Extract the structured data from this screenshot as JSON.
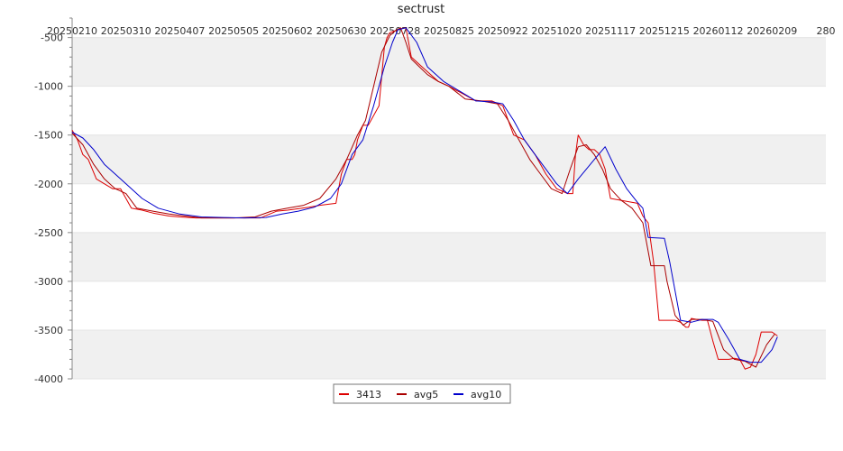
{
  "chart_data": {
    "type": "line",
    "title": "sectrust",
    "xlabel": "",
    "ylabel": "",
    "x_tick_labels": [
      "20250210",
      "20250310",
      "20250407",
      "20250505",
      "20250602",
      "20250630",
      "20250728",
      "20250825",
      "20250922",
      "20251020",
      "20251117",
      "20251215",
      "20260112",
      "20260209",
      "280"
    ],
    "x_range": [
      0,
      14
    ],
    "ylim": [
      -4000,
      -300
    ],
    "y_ticks": [
      -500,
      -1000,
      -1500,
      -2000,
      -2500,
      -3000,
      -3500,
      -4000
    ],
    "y_tick_labels": [
      "-500",
      "-1000",
      "-1500",
      "-2000",
      "-2500",
      "-3000",
      "-3500",
      "-4000"
    ],
    "grid": "horizontal bands",
    "legend_position": "bottom-center",
    "colors": {
      "3413": "#dd0000",
      "avg5": "#aa0000",
      "avg10": "#0000cc",
      "band": "#f0f0f0"
    },
    "series": [
      {
        "name": "3413",
        "x": [
          0,
          0.1,
          0.2,
          0.3,
          0.45,
          0.6,
          0.75,
          0.9,
          1.1,
          1.3,
          1.5,
          1.8,
          2.0,
          2.3,
          2.6,
          3.0,
          3.5,
          3.8,
          4.0,
          4.4,
          4.6,
          4.9,
          5.0,
          5.1,
          5.2,
          5.25,
          5.3,
          5.4,
          5.5,
          5.6,
          5.7,
          5.8,
          5.85,
          5.9,
          6.0,
          6.1,
          6.2,
          6.3,
          6.5,
          6.7,
          6.8,
          7.0,
          7.5,
          7.8,
          8.0,
          8.2,
          8.4,
          8.6,
          8.8,
          9.0,
          9.2,
          9.3,
          9.35,
          9.4,
          9.5,
          9.6,
          9.7,
          9.8,
          9.9,
          10.0,
          10.3,
          10.5,
          10.6,
          10.7,
          10.8,
          10.9,
          11.0,
          11.1,
          11.2,
          11.3,
          11.4,
          11.45,
          11.5,
          11.6,
          11.7,
          11.8,
          11.9,
          12.0,
          12.1,
          12.2,
          12.3,
          12.4,
          12.5,
          12.6,
          12.7,
          12.8,
          13.0,
          13.1
        ],
        "y": [
          -1450,
          -1550,
          -1700,
          -1750,
          -1950,
          -2000,
          -2050,
          -2050,
          -2250,
          -2270,
          -2300,
          -2330,
          -2340,
          -2350,
          -2350,
          -2350,
          -2350,
          -2280,
          -2270,
          -2240,
          -2220,
          -2200,
          -1900,
          -1750,
          -1750,
          -1700,
          -1550,
          -1400,
          -1400,
          -1300,
          -1200,
          -600,
          -500,
          -450,
          -430,
          -410,
          -400,
          -700,
          -800,
          -900,
          -950,
          -1000,
          -1150,
          -1150,
          -1200,
          -1500,
          -1550,
          -1700,
          -1900,
          -2050,
          -2100,
          -2100,
          -1700,
          -1500,
          -1600,
          -1650,
          -1650,
          -1700,
          -1850,
          -2150,
          -2180,
          -2200,
          -2330,
          -2400,
          -2800,
          -3400,
          -3400,
          -3400,
          -3400,
          -3420,
          -3470,
          -3470,
          -3380,
          -3390,
          -3400,
          -3400,
          -3610,
          -3800,
          -3800,
          -3800,
          -3790,
          -3800,
          -3900,
          -3880,
          -3750,
          -3520,
          -3520,
          -3560
        ]
      },
      {
        "name": "avg5",
        "x": [
          0,
          0.2,
          0.4,
          0.6,
          0.8,
          1.0,
          1.2,
          1.5,
          1.8,
          2.1,
          2.4,
          2.7,
          3.0,
          3.4,
          3.7,
          4.0,
          4.3,
          4.6,
          4.9,
          5.1,
          5.3,
          5.45,
          5.6,
          5.75,
          5.9,
          6.0,
          6.1,
          6.2,
          6.3,
          6.45,
          6.6,
          6.8,
          7.0,
          7.3,
          7.6,
          7.9,
          8.1,
          8.3,
          8.5,
          8.7,
          8.9,
          9.1,
          9.25,
          9.4,
          9.55,
          9.7,
          9.85,
          10.0,
          10.2,
          10.4,
          10.6,
          10.75,
          10.9,
          11.0,
          11.05,
          11.2,
          11.35,
          11.5,
          11.7,
          11.9,
          12.1,
          12.3,
          12.5,
          12.7,
          12.9,
          13.05
        ],
        "y": [
          -1480,
          -1600,
          -1800,
          -1950,
          -2050,
          -2100,
          -2250,
          -2280,
          -2310,
          -2330,
          -2350,
          -2350,
          -2350,
          -2340,
          -2280,
          -2250,
          -2220,
          -2150,
          -1950,
          -1750,
          -1500,
          -1350,
          -1000,
          -650,
          -480,
          -430,
          -400,
          -550,
          -720,
          -800,
          -880,
          -950,
          -1000,
          -1130,
          -1150,
          -1180,
          -1350,
          -1550,
          -1750,
          -1900,
          -2050,
          -2100,
          -1850,
          -1620,
          -1600,
          -1700,
          -1850,
          -2050,
          -2170,
          -2250,
          -2400,
          -2840,
          -2840,
          -2840,
          -3000,
          -3350,
          -3450,
          -3390,
          -3390,
          -3410,
          -3700,
          -3800,
          -3820,
          -3880,
          -3650,
          -3540
        ]
      },
      {
        "name": "avg10",
        "x": [
          0,
          0.2,
          0.4,
          0.6,
          0.8,
          1.0,
          1.3,
          1.6,
          2.0,
          2.4,
          2.8,
          3.2,
          3.6,
          3.9,
          4.2,
          4.5,
          4.8,
          5.0,
          5.2,
          5.4,
          5.6,
          5.8,
          5.95,
          6.05,
          6.2,
          6.4,
          6.6,
          6.9,
          7.2,
          7.5,
          7.8,
          8.0,
          8.2,
          8.4,
          8.6,
          8.8,
          9.0,
          9.2,
          9.4,
          9.55,
          9.7,
          9.9,
          10.1,
          10.3,
          10.5,
          10.6,
          10.7,
          11.0,
          11.1,
          11.3,
          11.5,
          11.7,
          11.9,
          12.0,
          12.2,
          12.4,
          12.6,
          12.8,
          13.0,
          13.1
        ],
        "y": [
          -1470,
          -1530,
          -1650,
          -1800,
          -1900,
          -2000,
          -2150,
          -2250,
          -2310,
          -2340,
          -2345,
          -2350,
          -2345,
          -2310,
          -2280,
          -2240,
          -2150,
          -2000,
          -1700,
          -1550,
          -1200,
          -800,
          -550,
          -420,
          -400,
          -550,
          -800,
          -950,
          -1050,
          -1150,
          -1160,
          -1180,
          -1350,
          -1550,
          -1700,
          -1850,
          -2000,
          -2100,
          -1950,
          -1850,
          -1750,
          -1620,
          -1850,
          -2050,
          -2190,
          -2250,
          -2550,
          -2560,
          -2800,
          -3400,
          -3420,
          -3390,
          -3390,
          -3420,
          -3600,
          -3800,
          -3830,
          -3830,
          -3700,
          -3570
        ]
      }
    ]
  }
}
